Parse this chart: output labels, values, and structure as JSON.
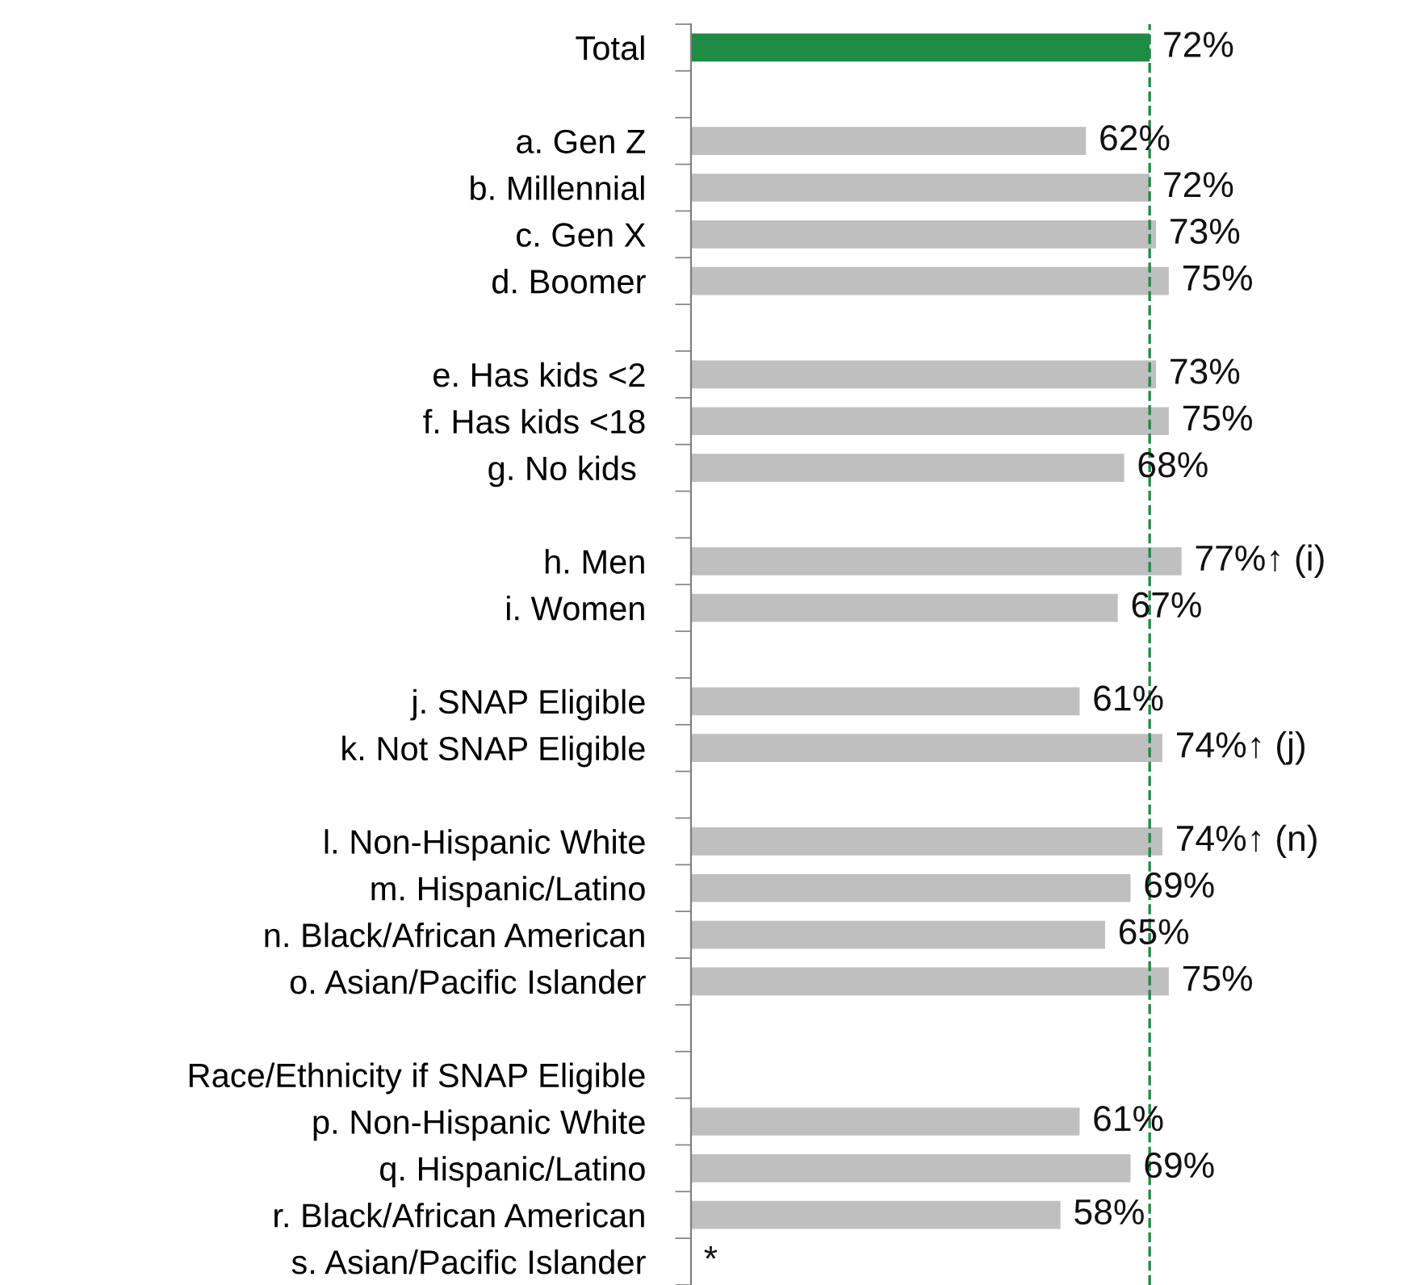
{
  "chart_data": {
    "type": "bar",
    "orientation": "horizontal",
    "categories": [
      "Total",
      null,
      "a. Gen Z",
      "b. Millennial",
      "c. Gen X",
      "d. Boomer",
      null,
      "e. Has kids <2",
      "f. Has kids <18",
      "g. No kids ",
      null,
      "h. Men",
      "i. Women",
      null,
      "j. SNAP Eligible",
      "k. Not SNAP Eligible",
      null,
      "l. Non-Hispanic White",
      "m. Hispanic/Latino",
      "n. Black/African American",
      "o. Asian/Pacific Islander",
      null,
      "Race/Ethnicity if SNAP Eligible",
      "p. Non-Hispanic White",
      "q. Hispanic/Latino",
      "r. Black/African American",
      "s. Asian/Pacific Islander"
    ],
    "values": [
      72,
      null,
      62,
      72,
      73,
      75,
      null,
      73,
      75,
      68,
      null,
      77,
      67,
      null,
      61,
      74,
      null,
      74,
      69,
      65,
      75,
      null,
      null,
      61,
      69,
      58,
      null
    ],
    "colors": [
      "#1e8c45",
      null,
      "#bfbfbf",
      "#bfbfbf",
      "#bfbfbf",
      "#bfbfbf",
      null,
      "#bfbfbf",
      "#bfbfbf",
      "#bfbfbf",
      null,
      "#bfbfbf",
      "#bfbfbf",
      null,
      "#bfbfbf",
      "#bfbfbf",
      null,
      "#bfbfbf",
      "#bfbfbf",
      "#bfbfbf",
      "#bfbfbf",
      null,
      null,
      "#bfbfbf",
      "#bfbfbf",
      "#bfbfbf",
      null
    ],
    "value_labels": [
      "72%",
      null,
      "62%",
      "72%",
      "73%",
      "75%",
      null,
      "73%",
      "75%",
      "68%",
      null,
      "77%↑ (i)",
      "67%",
      null,
      "61%",
      "74%↑ (j)",
      null,
      "74%↑ (n)",
      "69%",
      "65%",
      "75%",
      null,
      null,
      "61%",
      "69%",
      "58%",
      "*"
    ],
    "ref_lines": [
      {
        "axis": "x",
        "value": 72,
        "color": "#1e8c45",
        "line_style": "dashed"
      }
    ],
    "tick_labels": "y",
    "grid": false,
    "legend": false
  }
}
